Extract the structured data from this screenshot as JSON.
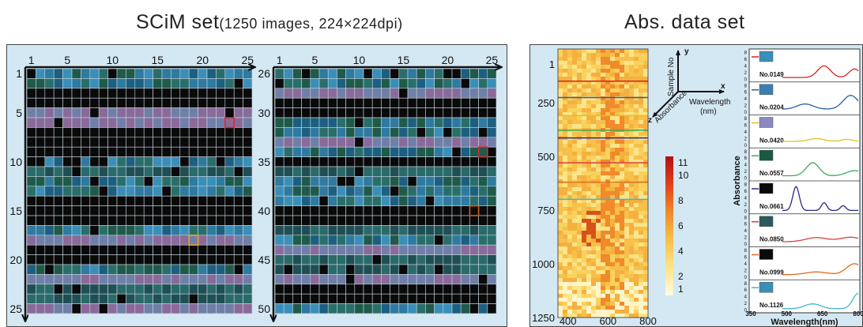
{
  "left_title": {
    "main": "SCiM set",
    "detail": "(1250 images, 224×224dpi)"
  },
  "right_title": "Abs. data set",
  "grid1": {
    "col_ticks": [
      "1",
      "5",
      "10",
      "15",
      "20",
      "25"
    ],
    "row_ticks": [
      "1",
      "5",
      "10",
      "15",
      "20",
      "25"
    ]
  },
  "grid2": {
    "col_ticks": [
      "1",
      "5",
      "10",
      "15",
      "20",
      "25"
    ],
    "row_ticks": [
      "26",
      "30",
      "35",
      "40",
      "45",
      "50"
    ]
  },
  "heatmap": {
    "y_ticks": [
      "1",
      "250",
      "500",
      "750",
      "1000",
      "1250"
    ],
    "x_ticks": [
      "400",
      "600",
      "800"
    ],
    "colorbar_ticks": [
      "11",
      "10",
      "8",
      "6",
      "4",
      "2",
      "1"
    ],
    "colorbar_colors": [
      "#b01010",
      "#e0401a",
      "#f08a2a",
      "#f7c04a",
      "#fbe48a",
      "#fffbe0"
    ]
  },
  "axes3d": {
    "y": "y",
    "x": "x",
    "z": "z",
    "sample_no": "Sample No",
    "wavelength": "Wavelength",
    "nm": "(nm)",
    "absorbance": "Absorbance"
  },
  "spectra": {
    "ylabel": "Absorbance",
    "xlabel": "Wavelength(nm)",
    "x_ticks": [
      "350",
      "500",
      "650",
      "800"
    ],
    "y_ticks": [
      "8",
      "6",
      "4",
      "2",
      "0"
    ],
    "samples": [
      {
        "label": "No.0149",
        "color": "#d62020"
      },
      {
        "label": "No.0204",
        "color": "#2a5fa8"
      },
      {
        "label": "No.0420",
        "color": "#e0c020"
      },
      {
        "label": "No.0557",
        "color": "#3aaa5a"
      },
      {
        "label": "No.0661",
        "color": "#2a2a8a"
      },
      {
        "label": "No.0850",
        "color": "#d84040"
      },
      {
        "label": "No.0999",
        "color": "#e06a20"
      },
      {
        "label": "No.1126",
        "color": "#40b8d0"
      }
    ]
  }
}
